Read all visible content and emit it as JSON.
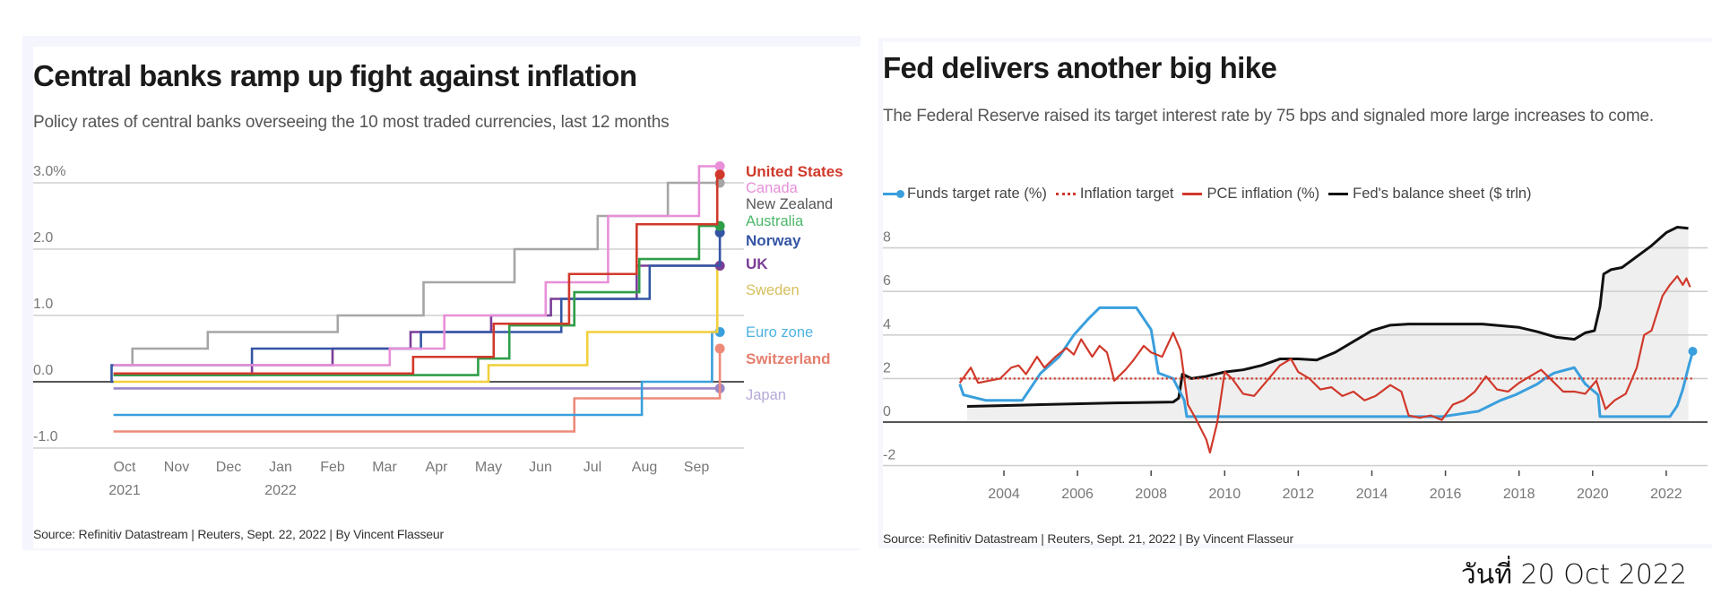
{
  "left": {
    "title": "Central banks ramp up fight against inflation",
    "subtitle": "Policy rates of central banks overseeing the 10 most traded currencies, last 12 months",
    "source": "Source: Refinitiv Datastream | Reuters, Sept. 22, 2022 | By Vincent Flasseur"
  },
  "right": {
    "title": "Fed delivers another big hike",
    "subtitle": "The Federal Reserve raised its target interest rate by 75 bps and signaled more large increases to come.",
    "legend": [
      {
        "label": "Funds target rate (%)",
        "style": "dot-line",
        "color": "#3a9fdd"
      },
      {
        "label": "Inflation target",
        "style": "dotted",
        "color": "#d0392b"
      },
      {
        "label": "PCE inflation (%)",
        "style": "solid",
        "color": "#d0392b"
      },
      {
        "label": "Fed's balance sheet ($ trln)",
        "style": "solid",
        "color": "#111111"
      }
    ],
    "source": "Source: Refinitiv Datastream | Reuters, Sept. 21, 2022 | By Vincent Flasseur"
  },
  "date_stamp": "วันที่ 20 Oct 2022",
  "chart_data": [
    {
      "type": "line",
      "step": true,
      "title": "Central banks ramp up fight against inflation",
      "subtitle": "Policy rates of central banks overseeing the 10 most traded currencies, last 12 months",
      "xlabel": "",
      "ylabel": "",
      "ylim": [
        -1.0,
        3.25
      ],
      "yticks": [
        3.0,
        2.0,
        1.0,
        0.0,
        -1.0
      ],
      "ytick_labels": [
        "3.0%",
        "2.0",
        "1.0",
        "0.0",
        "-1.0"
      ],
      "xlim": [
        -0.3,
        11.6
      ],
      "xticks": [
        0,
        1,
        2,
        3,
        4,
        5,
        6,
        7,
        8,
        9,
        10,
        11
      ],
      "xtick_labels": [
        "Oct\n2021",
        "Nov",
        "Dec",
        "Jan\n2022",
        "Feb",
        "Mar",
        "Apr",
        "May",
        "Jun",
        "Jul",
        "Aug",
        "Sep"
      ],
      "x_units": "months since Oct 2021",
      "grid": true,
      "legend": "direct-labels-right",
      "series": [
        {
          "name": "United States",
          "color": "#d0392b",
          "bold": true,
          "label_color": "#d0392b",
          "steps": [
            [
              -0.3,
              0.125
            ],
            [
              5.55,
              0.375
            ],
            [
              7.1,
              0.875
            ],
            [
              8.55,
              1.625
            ],
            [
              9.85,
              2.375
            ],
            [
              11.4,
              3.125
            ]
          ]
        },
        {
          "name": "Canada",
          "color": "#e88fd8",
          "bold": false,
          "label_color": "#e58fd6",
          "steps": [
            [
              -0.3,
              0.25
            ],
            [
              5.1,
              0.5
            ],
            [
              6.15,
              1.0
            ],
            [
              8.1,
              1.5
            ],
            [
              9.3,
              2.5
            ],
            [
              11.05,
              3.25
            ]
          ]
        },
        {
          "name": "New Zealand",
          "color": "#a6a6a6",
          "bold": false,
          "label_color": "#555555",
          "steps": [
            [
              -0.3,
              0.25
            ],
            [
              0.15,
              0.5
            ],
            [
              1.6,
              0.75
            ],
            [
              4.1,
              1.0
            ],
            [
              5.75,
              1.5
            ],
            [
              7.5,
              2.0
            ],
            [
              9.1,
              2.5
            ],
            [
              10.45,
              3.0
            ]
          ]
        },
        {
          "name": "Australia",
          "color": "#2e9e48",
          "bold": false,
          "label_color": "#4db86a",
          "steps": [
            [
              -0.3,
              0.1
            ],
            [
              6.8,
              0.35
            ],
            [
              7.4,
              0.85
            ],
            [
              8.65,
              1.35
            ],
            [
              9.9,
              1.85
            ],
            [
              11.05,
              2.35
            ]
          ]
        },
        {
          "name": "Norway",
          "color": "#3455a4",
          "bold": true,
          "label_color": "#3455a4",
          "steps": [
            [
              -0.3,
              0.0
            ],
            [
              -0.25,
              0.25
            ],
            [
              2.45,
              0.5
            ],
            [
              5.7,
              0.75
            ],
            [
              8.4,
              1.25
            ],
            [
              10.1,
              1.75
            ],
            [
              11.45,
              2.25
            ]
          ]
        },
        {
          "name": "UK",
          "color": "#7a3d98",
          "bold": true,
          "label_color": "#7a3d98",
          "steps": [
            [
              -0.3,
              0.1
            ],
            [
              2.45,
              0.25
            ],
            [
              4.0,
              0.5
            ],
            [
              5.5,
              0.75
            ],
            [
              7.05,
              1.0
            ],
            [
              8.2,
              1.25
            ],
            [
              9.85,
              1.75
            ]
          ]
        },
        {
          "name": "Sweden",
          "color": "#f2cf3a",
          "bold": false,
          "label_color": "#d6bf5c",
          "steps": [
            [
              -0.3,
              0.0
            ],
            [
              7.0,
              0.25
            ],
            [
              8.9,
              0.75
            ],
            [
              11.4,
              1.75
            ]
          ]
        },
        {
          "name": "Euro zone",
          "color": "#3a9fdd",
          "bold": false,
          "label_color": "#4fb3e0",
          "steps": [
            [
              -0.3,
              -0.5
            ],
            [
              9.95,
              0.0
            ],
            [
              11.3,
              0.75
            ]
          ]
        },
        {
          "name": "Switzerland",
          "color": "#ee8a7a",
          "bold": true,
          "label_color": "#e57f6e",
          "steps": [
            [
              -0.3,
              -0.75
            ],
            [
              8.65,
              -0.25
            ],
            [
              11.45,
              0.5
            ]
          ]
        },
        {
          "name": "Japan",
          "color": "#9b86c8",
          "bold": false,
          "label_color": "#b7a9d8",
          "steps": [
            [
              -0.3,
              -0.1
            ],
            [
              11.45,
              -0.1
            ]
          ]
        }
      ],
      "end_date_x": 11.45
    },
    {
      "type": "line",
      "title": "Fed delivers another big hike",
      "subtitle": "The Federal Reserve raised its target interest rate by 75 bps and signaled more large increases to come.",
      "xlabel": "",
      "ylabel": "",
      "xlim": [
        2000.7,
        2023.0
      ],
      "ylim": [
        -2.8,
        8.8
      ],
      "yticks": [
        8,
        6,
        4,
        2,
        0,
        -2
      ],
      "ytick_labels": [
        "8",
        "6",
        "4",
        "2",
        "0",
        "-2"
      ],
      "xticks": [
        2004,
        2006,
        2008,
        2010,
        2012,
        2014,
        2016,
        2018,
        2020,
        2022
      ],
      "xtick_labels": [
        "2004",
        "2006",
        "2008",
        "2010",
        "2012",
        "2014",
        "2016",
        "2018",
        "2020",
        "2022"
      ],
      "grid": true,
      "legend": "top-left",
      "series": [
        {
          "name": "Funds target rate (%)",
          "color": "#3a9fdd",
          "end_marker": true,
          "points": [
            [
              2002.8,
              1.75
            ],
            [
              2002.9,
              1.25
            ],
            [
              2003.5,
              1.0
            ],
            [
              2004.5,
              1.0
            ],
            [
              2004.7,
              1.5
            ],
            [
              2005.0,
              2.25
            ],
            [
              2005.5,
              3.0
            ],
            [
              2005.9,
              4.0
            ],
            [
              2006.3,
              4.75
            ],
            [
              2006.6,
              5.25
            ],
            [
              2007.6,
              5.25
            ],
            [
              2007.8,
              4.75
            ],
            [
              2008.0,
              4.25
            ],
            [
              2008.2,
              2.25
            ],
            [
              2008.6,
              2.0
            ],
            [
              2008.9,
              1.0
            ],
            [
              2008.97,
              0.25
            ],
            [
              2015.9,
              0.25
            ],
            [
              2016.9,
              0.5
            ],
            [
              2017.2,
              0.75
            ],
            [
              2017.5,
              1.0
            ],
            [
              2017.9,
              1.25
            ],
            [
              2018.2,
              1.5
            ],
            [
              2018.5,
              1.75
            ],
            [
              2018.7,
              2.0
            ],
            [
              2018.95,
              2.25
            ],
            [
              2019.5,
              2.5
            ],
            [
              2019.6,
              2.25
            ],
            [
              2019.8,
              1.75
            ],
            [
              2020.15,
              1.25
            ],
            [
              2020.2,
              0.25
            ],
            [
              2022.1,
              0.25
            ],
            [
              2022.3,
              0.75
            ],
            [
              2022.45,
              1.5
            ],
            [
              2022.6,
              2.5
            ],
            [
              2022.72,
              3.25
            ]
          ]
        },
        {
          "name": "Inflation target",
          "color": "#d0392b",
          "dotted": true,
          "points": [
            [
              2002.8,
              2.0
            ],
            [
              2022.75,
              2.0
            ]
          ]
        },
        {
          "name": "PCE inflation (%)",
          "color": "#d0392b",
          "points": [
            [
              2002.8,
              1.8
            ],
            [
              2003.1,
              2.5
            ],
            [
              2003.3,
              1.8
            ],
            [
              2003.6,
              1.9
            ],
            [
              2003.9,
              2.0
            ],
            [
              2004.2,
              2.5
            ],
            [
              2004.4,
              2.6
            ],
            [
              2004.6,
              2.2
            ],
            [
              2004.9,
              3.0
            ],
            [
              2005.1,
              2.5
            ],
            [
              2005.4,
              3.0
            ],
            [
              2005.7,
              3.4
            ],
            [
              2005.9,
              3.1
            ],
            [
              2006.1,
              3.8
            ],
            [
              2006.4,
              3.0
            ],
            [
              2006.6,
              3.5
            ],
            [
              2006.8,
              3.2
            ],
            [
              2007.0,
              1.9
            ],
            [
              2007.3,
              2.4
            ],
            [
              2007.5,
              2.8
            ],
            [
              2007.8,
              3.5
            ],
            [
              2008.0,
              3.2
            ],
            [
              2008.3,
              3.0
            ],
            [
              2008.6,
              4.1
            ],
            [
              2008.8,
              3.3
            ],
            [
              2009.0,
              0.8
            ],
            [
              2009.2,
              0.2
            ],
            [
              2009.5,
              -0.8
            ],
            [
              2009.6,
              -1.4
            ],
            [
              2009.8,
              0.0
            ],
            [
              2010.0,
              2.3
            ],
            [
              2010.2,
              2.0
            ],
            [
              2010.5,
              1.3
            ],
            [
              2010.8,
              1.2
            ],
            [
              2011.2,
              2.0
            ],
            [
              2011.5,
              2.6
            ],
            [
              2011.8,
              2.9
            ],
            [
              2012.0,
              2.3
            ],
            [
              2012.3,
              2.0
            ],
            [
              2012.6,
              1.5
            ],
            [
              2012.9,
              1.6
            ],
            [
              2013.2,
              1.2
            ],
            [
              2013.5,
              1.4
            ],
            [
              2013.8,
              1.0
            ],
            [
              2014.1,
              1.2
            ],
            [
              2014.5,
              1.7
            ],
            [
              2014.8,
              1.4
            ],
            [
              2015.0,
              0.3
            ],
            [
              2015.3,
              0.2
            ],
            [
              2015.6,
              0.3
            ],
            [
              2015.9,
              0.1
            ],
            [
              2016.2,
              0.8
            ],
            [
              2016.5,
              1.0
            ],
            [
              2016.8,
              1.4
            ],
            [
              2017.1,
              2.1
            ],
            [
              2017.4,
              1.5
            ],
            [
              2017.7,
              1.4
            ],
            [
              2018.0,
              1.8
            ],
            [
              2018.3,
              2.1
            ],
            [
              2018.6,
              2.4
            ],
            [
              2018.9,
              1.9
            ],
            [
              2019.2,
              1.4
            ],
            [
              2019.5,
              1.4
            ],
            [
              2019.8,
              1.3
            ],
            [
              2020.1,
              1.9
            ],
            [
              2020.35,
              0.6
            ],
            [
              2020.6,
              1.0
            ],
            [
              2020.9,
              1.3
            ],
            [
              2021.2,
              2.5
            ],
            [
              2021.4,
              4.0
            ],
            [
              2021.6,
              4.2
            ],
            [
              2021.9,
              5.8
            ],
            [
              2022.1,
              6.3
            ],
            [
              2022.3,
              6.7
            ],
            [
              2022.45,
              6.3
            ],
            [
              2022.55,
              6.6
            ],
            [
              2022.65,
              6.2
            ]
          ]
        },
        {
          "name": "Fed's balance sheet ($ trln)",
          "color": "#111111",
          "area_fill": "#efefef",
          "points": [
            [
              2003.0,
              0.72
            ],
            [
              2005.0,
              0.8
            ],
            [
              2007.0,
              0.88
            ],
            [
              2008.6,
              0.92
            ],
            [
              2008.75,
              1.1
            ],
            [
              2008.85,
              2.2
            ],
            [
              2009.1,
              2.0
            ],
            [
              2009.5,
              2.1
            ],
            [
              2010.0,
              2.3
            ],
            [
              2010.5,
              2.4
            ],
            [
              2011.0,
              2.6
            ],
            [
              2011.5,
              2.9
            ],
            [
              2012.0,
              2.9
            ],
            [
              2012.5,
              2.85
            ],
            [
              2013.0,
              3.2
            ],
            [
              2013.5,
              3.7
            ],
            [
              2014.0,
              4.2
            ],
            [
              2014.5,
              4.45
            ],
            [
              2015.0,
              4.5
            ],
            [
              2016.0,
              4.5
            ],
            [
              2017.0,
              4.5
            ],
            [
              2018.0,
              4.35
            ],
            [
              2018.5,
              4.15
            ],
            [
              2019.0,
              3.9
            ],
            [
              2019.5,
              3.8
            ],
            [
              2019.8,
              4.1
            ],
            [
              2020.05,
              4.2
            ],
            [
              2020.2,
              5.3
            ],
            [
              2020.3,
              6.8
            ],
            [
              2020.5,
              7.0
            ],
            [
              2020.8,
              7.1
            ],
            [
              2021.2,
              7.6
            ],
            [
              2021.6,
              8.1
            ],
            [
              2022.0,
              8.7
            ],
            [
              2022.3,
              8.95
            ],
            [
              2022.6,
              8.9
            ]
          ]
        }
      ]
    }
  ]
}
